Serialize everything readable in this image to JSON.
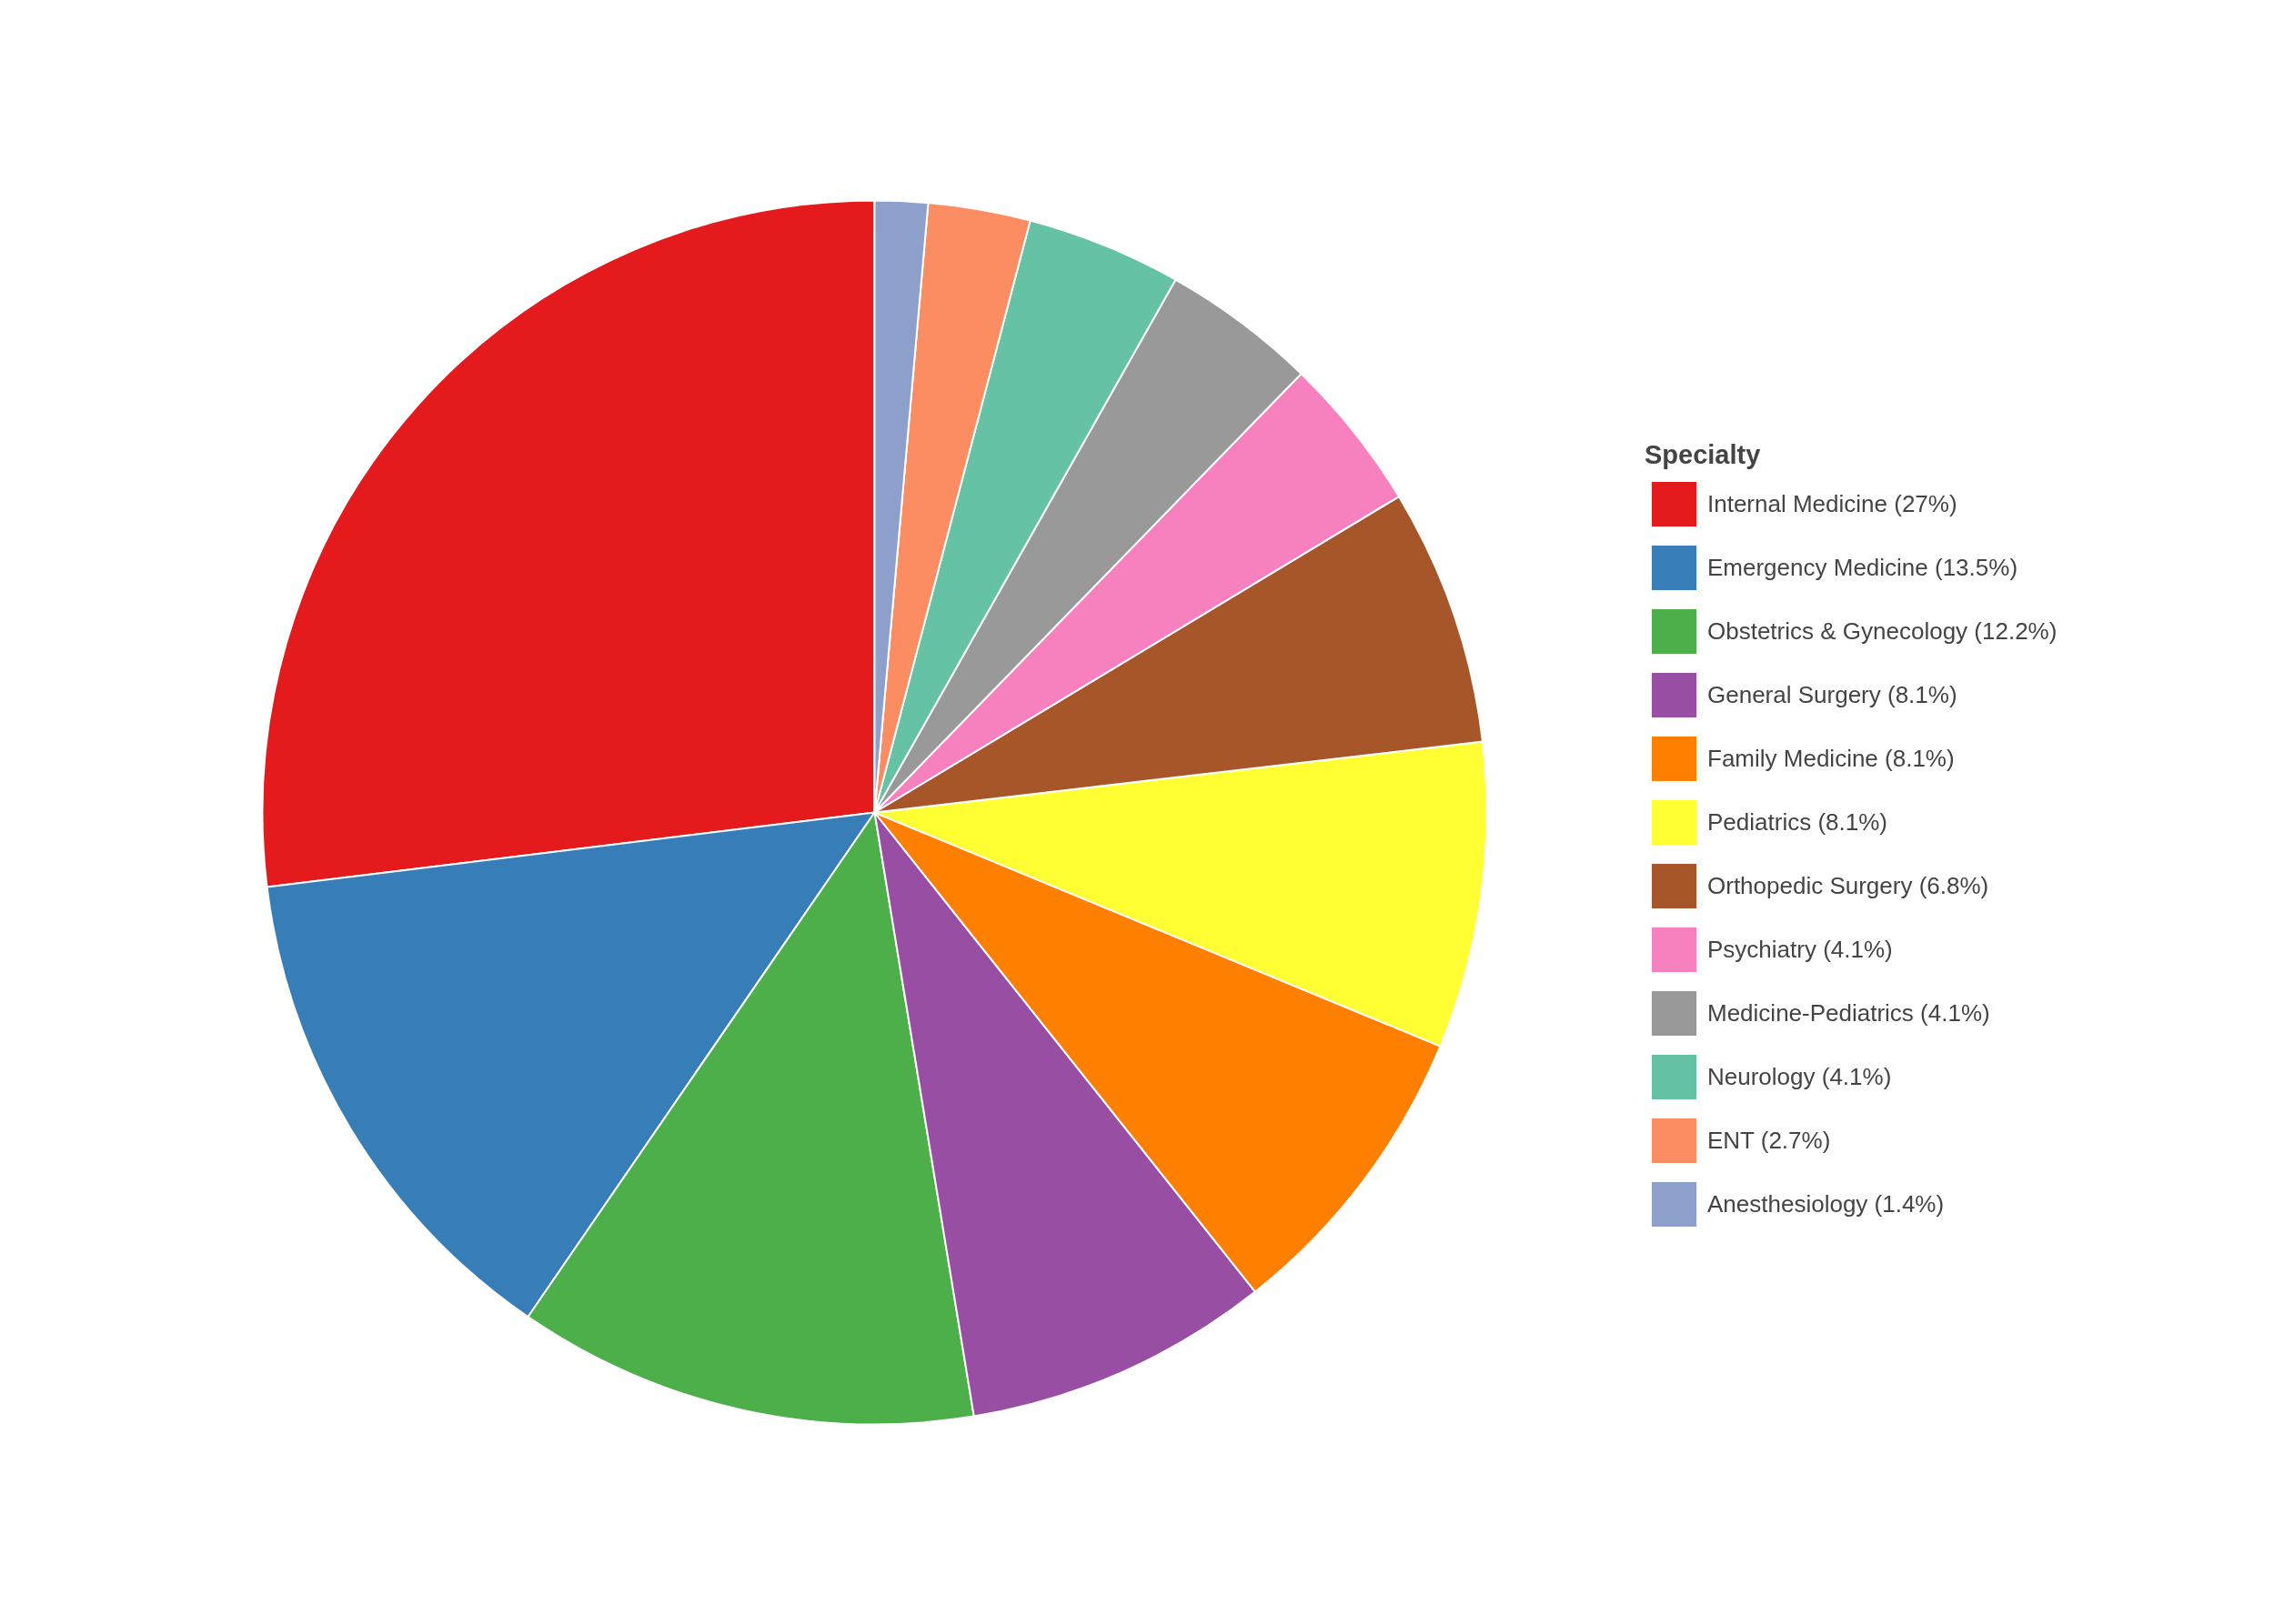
{
  "chart_data": {
    "type": "pie",
    "legend_title": "Specialty",
    "legend": "right",
    "categories": [
      "Internal Medicine (27%)",
      "Emergency Medicine (13.5%)",
      "Obstetrics & Gynecology (12.2%)",
      "General Surgery (8.1%)",
      "Family Medicine (8.1%)",
      "Pediatrics (8.1%)",
      "Orthopedic Surgery (6.8%)",
      "Psychiatry (4.1%)",
      "Medicine-Pediatrics (4.1%)",
      "Neurology (4.1%)",
      "ENT (2.7%)",
      "Anesthesiology (1.4%)"
    ],
    "values": [
      27,
      13.5,
      12.2,
      8.1,
      8.1,
      8.1,
      6.8,
      4.1,
      4.1,
      4.1,
      2.7,
      1.4
    ],
    "colors": [
      "#e41a1c",
      "#377eb8",
      "#4daf4a",
      "#984ea3",
      "#ff7f00",
      "#ffff33",
      "#a65628",
      "#f781bf",
      "#999999",
      "#66c2a5",
      "#fc8d62",
      "#8da0cb"
    ]
  }
}
